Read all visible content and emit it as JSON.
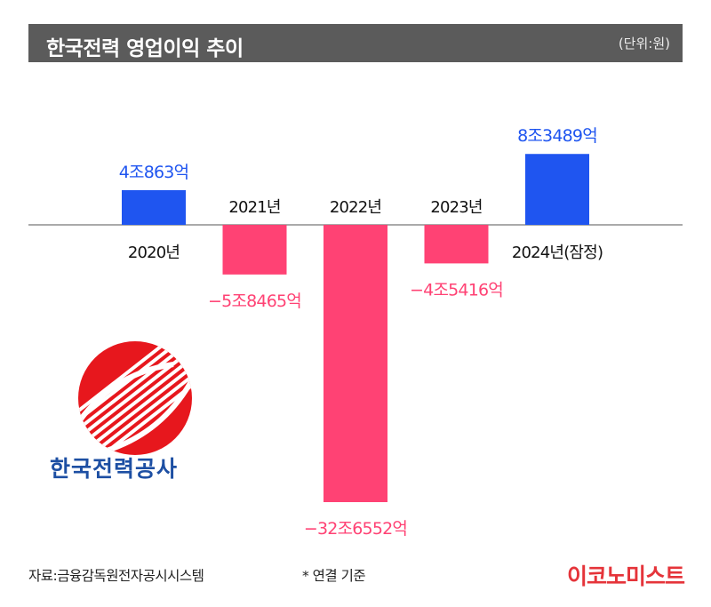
{
  "header": {
    "title": "한국전력 영업이익 추이",
    "unit": "(단위:원)"
  },
  "colors": {
    "positive": "#1f55f0",
    "negative": "#ff4274",
    "header_bg": "#5b5b5b",
    "logo_red": "#e7171d",
    "logo_blue": "#1d4fa3",
    "brand_red": "#e5343a"
  },
  "chart_data": {
    "type": "bar",
    "title": "한국전력 영업이익 추이",
    "unit": "(단위:원)",
    "categories": [
      "2020년",
      "2021년",
      "2022년",
      "2023년",
      "2024년(잠정)"
    ],
    "values": [
      40863,
      -58465,
      -326552,
      -45416,
      83489
    ],
    "value_unit": "억원",
    "data_labels": [
      "4조863억",
      "−5조8465억",
      "−32조6552억",
      "−4조5416억",
      "8조3489억"
    ]
  },
  "logo": {
    "icon": "kepco-logo-icon",
    "text": "한국전력공사"
  },
  "footer": {
    "source": "자료:금융감독원전자공시시스템",
    "note": "* 연결 기준",
    "brand": "이코노미스트"
  }
}
